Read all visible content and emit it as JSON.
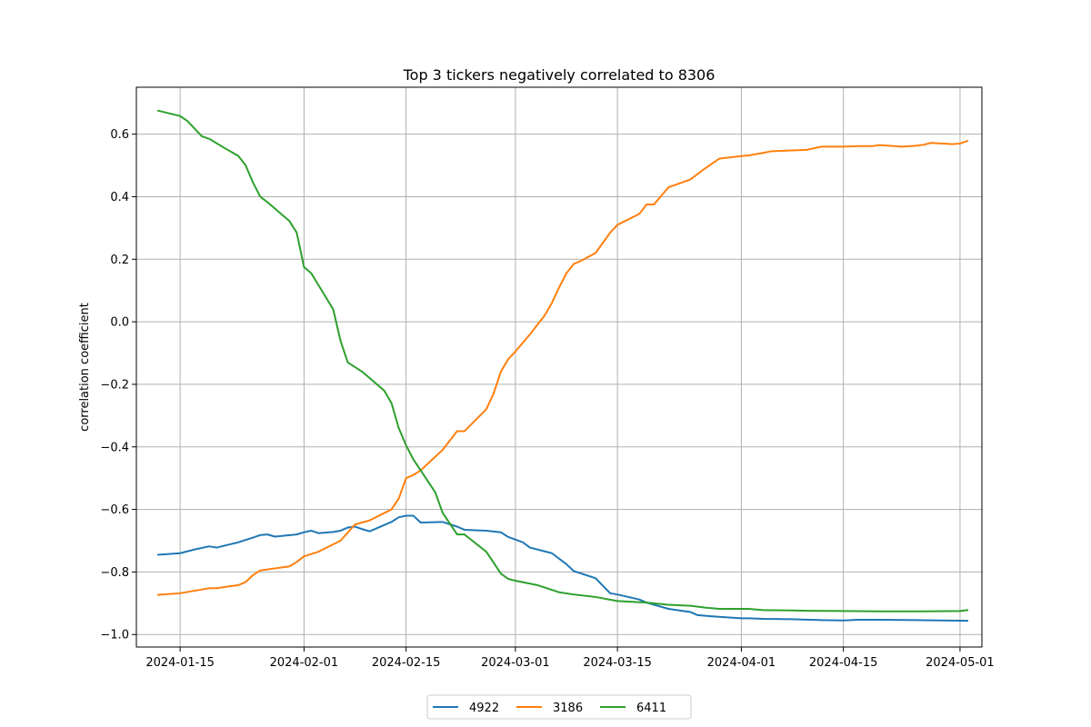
{
  "chart_data": {
    "type": "line",
    "title": "Top 3 tickers negatively correlated to 8306",
    "xlabel": "",
    "ylabel": "correlation coefficient",
    "x_tick_labels": [
      "2024-01-15",
      "2024-02-01",
      "2024-02-15",
      "2024-03-01",
      "2024-03-15",
      "2024-04-01",
      "2024-04-15",
      "2024-05-01"
    ],
    "y_ticks": [
      -1.0,
      -0.8,
      -0.6,
      -0.4,
      -0.2,
      0.0,
      0.2,
      0.4,
      0.6
    ],
    "y_tick_labels": [
      "−1.0",
      "−0.8",
      "−0.6",
      "−0.4",
      "−0.2",
      "0.0",
      "0.2",
      "0.4",
      "0.6"
    ],
    "xlim": [
      "2024-01-09",
      "2024-05-04"
    ],
    "ylim": [
      -1.04,
      0.75
    ],
    "grid": true,
    "legend_placement": "bottom-center",
    "series": [
      {
        "name": "4922",
        "color": "#1f77b4",
        "points": [
          [
            "2024-01-12",
            -0.745
          ],
          [
            "2024-01-15",
            -0.74
          ],
          [
            "2024-01-17",
            -0.728
          ],
          [
            "2024-01-19",
            -0.718
          ],
          [
            "2024-01-20",
            -0.722
          ],
          [
            "2024-01-23",
            -0.705
          ],
          [
            "2024-01-25",
            -0.69
          ],
          [
            "2024-01-26",
            -0.682
          ],
          [
            "2024-01-27",
            -0.68
          ],
          [
            "2024-01-28",
            -0.687
          ],
          [
            "2024-01-31",
            -0.68
          ],
          [
            "2024-02-01",
            -0.673
          ],
          [
            "2024-02-02",
            -0.668
          ],
          [
            "2024-02-03",
            -0.676
          ],
          [
            "2024-02-05",
            -0.672
          ],
          [
            "2024-02-06",
            -0.668
          ],
          [
            "2024-02-07",
            -0.658
          ],
          [
            "2024-02-08",
            -0.655
          ],
          [
            "2024-02-09",
            -0.663
          ],
          [
            "2024-02-10",
            -0.67
          ],
          [
            "2024-02-13",
            -0.64
          ],
          [
            "2024-02-14",
            -0.625
          ],
          [
            "2024-02-15",
            -0.62
          ],
          [
            "2024-02-16",
            -0.62
          ],
          [
            "2024-02-17",
            -0.642
          ],
          [
            "2024-02-20",
            -0.64
          ],
          [
            "2024-02-22",
            -0.655
          ],
          [
            "2024-02-23",
            -0.665
          ],
          [
            "2024-02-26",
            -0.668
          ],
          [
            "2024-02-28",
            -0.673
          ],
          [
            "2024-02-29",
            -0.688
          ],
          [
            "2024-03-02",
            -0.705
          ],
          [
            "2024-03-03",
            -0.722
          ],
          [
            "2024-03-06",
            -0.74
          ],
          [
            "2024-03-08",
            -0.775
          ],
          [
            "2024-03-09",
            -0.797
          ],
          [
            "2024-03-12",
            -0.82
          ],
          [
            "2024-03-14",
            -0.868
          ],
          [
            "2024-03-15",
            -0.872
          ],
          [
            "2024-03-18",
            -0.888
          ],
          [
            "2024-03-19",
            -0.898
          ],
          [
            "2024-03-22",
            -0.918
          ],
          [
            "2024-03-25",
            -0.928
          ],
          [
            "2024-03-26",
            -0.938
          ],
          [
            "2024-03-28",
            -0.942
          ],
          [
            "2024-04-01",
            -0.948
          ],
          [
            "2024-04-02",
            -0.948
          ],
          [
            "2024-04-04",
            -0.95
          ],
          [
            "2024-04-08",
            -0.951
          ],
          [
            "2024-04-12",
            -0.954
          ],
          [
            "2024-04-15",
            -0.955
          ],
          [
            "2024-04-17",
            -0.953
          ],
          [
            "2024-04-20",
            -0.953
          ],
          [
            "2024-04-25",
            -0.954
          ],
          [
            "2024-05-02",
            -0.956
          ]
        ]
      },
      {
        "name": "3186",
        "color": "#ff7f0e",
        "points": [
          [
            "2024-01-12",
            -0.873
          ],
          [
            "2024-01-15",
            -0.868
          ],
          [
            "2024-01-17",
            -0.86
          ],
          [
            "2024-01-19",
            -0.852
          ],
          [
            "2024-01-20",
            -0.852
          ],
          [
            "2024-01-23",
            -0.842
          ],
          [
            "2024-01-24",
            -0.832
          ],
          [
            "2024-01-25",
            -0.81
          ],
          [
            "2024-01-26",
            -0.795
          ],
          [
            "2024-01-30",
            -0.782
          ],
          [
            "2024-01-31",
            -0.768
          ],
          [
            "2024-02-01",
            -0.75
          ],
          [
            "2024-02-03",
            -0.735
          ],
          [
            "2024-02-06",
            -0.7
          ],
          [
            "2024-02-08",
            -0.648
          ],
          [
            "2024-02-10",
            -0.635
          ],
          [
            "2024-02-13",
            -0.6
          ],
          [
            "2024-02-14",
            -0.565
          ],
          [
            "2024-02-15",
            -0.5
          ],
          [
            "2024-02-16",
            -0.49
          ],
          [
            "2024-02-17",
            -0.475
          ],
          [
            "2024-02-20",
            -0.41
          ],
          [
            "2024-02-22",
            -0.35
          ],
          [
            "2024-02-23",
            -0.35
          ],
          [
            "2024-02-26",
            -0.28
          ],
          [
            "2024-02-27",
            -0.23
          ],
          [
            "2024-02-28",
            -0.16
          ],
          [
            "2024-02-29",
            -0.12
          ],
          [
            "2024-03-01",
            -0.095
          ],
          [
            "2024-03-03",
            -0.04
          ],
          [
            "2024-03-05",
            0.02
          ],
          [
            "2024-03-06",
            0.06
          ],
          [
            "2024-03-07",
            0.11
          ],
          [
            "2024-03-08",
            0.155
          ],
          [
            "2024-03-09",
            0.185
          ],
          [
            "2024-03-10",
            0.195
          ],
          [
            "2024-03-12",
            0.22
          ],
          [
            "2024-03-14",
            0.285
          ],
          [
            "2024-03-15",
            0.31
          ],
          [
            "2024-03-18",
            0.345
          ],
          [
            "2024-03-19",
            0.375
          ],
          [
            "2024-03-20",
            0.375
          ],
          [
            "2024-03-22",
            0.43
          ],
          [
            "2024-03-25",
            0.455
          ],
          [
            "2024-03-27",
            0.49
          ],
          [
            "2024-03-29",
            0.522
          ],
          [
            "2024-04-01",
            0.53
          ],
          [
            "2024-04-02",
            0.532
          ],
          [
            "2024-04-04",
            0.54
          ],
          [
            "2024-04-05",
            0.545
          ],
          [
            "2024-04-08",
            0.548
          ],
          [
            "2024-04-10",
            0.55
          ],
          [
            "2024-04-12",
            0.56
          ],
          [
            "2024-04-15",
            0.56
          ],
          [
            "2024-04-17",
            0.562
          ],
          [
            "2024-04-19",
            0.562
          ],
          [
            "2024-04-20",
            0.565
          ],
          [
            "2024-04-23",
            0.56
          ],
          [
            "2024-04-25",
            0.563
          ],
          [
            "2024-04-26",
            0.566
          ],
          [
            "2024-04-27",
            0.572
          ],
          [
            "2024-04-30",
            0.568
          ],
          [
            "2024-05-01",
            0.57
          ],
          [
            "2024-05-02",
            0.578
          ]
        ]
      },
      {
        "name": "6411",
        "color": "#2ca02c",
        "points": [
          [
            "2024-01-12",
            0.675
          ],
          [
            "2024-01-15",
            0.658
          ],
          [
            "2024-01-16",
            0.642
          ],
          [
            "2024-01-18",
            0.593
          ],
          [
            "2024-01-19",
            0.585
          ],
          [
            "2024-01-21",
            0.557
          ],
          [
            "2024-01-23",
            0.53
          ],
          [
            "2024-01-24",
            0.5
          ],
          [
            "2024-01-25",
            0.445
          ],
          [
            "2024-01-26",
            0.4
          ],
          [
            "2024-01-27",
            0.382
          ],
          [
            "2024-01-30",
            0.322
          ],
          [
            "2024-01-31",
            0.285
          ],
          [
            "2024-02-01",
            0.175
          ],
          [
            "2024-02-02",
            0.155
          ],
          [
            "2024-02-05",
            0.04
          ],
          [
            "2024-02-06",
            -0.06
          ],
          [
            "2024-02-07",
            -0.13
          ],
          [
            "2024-02-09",
            -0.16
          ],
          [
            "2024-02-12",
            -0.22
          ],
          [
            "2024-02-13",
            -0.26
          ],
          [
            "2024-02-14",
            -0.34
          ],
          [
            "2024-02-15",
            -0.395
          ],
          [
            "2024-02-16",
            -0.44
          ],
          [
            "2024-02-19",
            -0.545
          ],
          [
            "2024-02-20",
            -0.61
          ],
          [
            "2024-02-22",
            -0.68
          ],
          [
            "2024-02-23",
            -0.68
          ],
          [
            "2024-02-26",
            -0.735
          ],
          [
            "2024-02-27",
            -0.77
          ],
          [
            "2024-02-28",
            -0.805
          ],
          [
            "2024-02-29",
            -0.822
          ],
          [
            "2024-03-01",
            -0.828
          ],
          [
            "2024-03-04",
            -0.842
          ],
          [
            "2024-03-06",
            -0.857
          ],
          [
            "2024-03-07",
            -0.865
          ],
          [
            "2024-03-09",
            -0.872
          ],
          [
            "2024-03-12",
            -0.88
          ],
          [
            "2024-03-15",
            -0.893
          ],
          [
            "2024-03-19",
            -0.898
          ],
          [
            "2024-03-22",
            -0.905
          ],
          [
            "2024-03-25",
            -0.908
          ],
          [
            "2024-03-27",
            -0.914
          ],
          [
            "2024-03-29",
            -0.918
          ],
          [
            "2024-04-02",
            -0.918
          ],
          [
            "2024-04-04",
            -0.922
          ],
          [
            "2024-04-08",
            -0.923
          ],
          [
            "2024-04-10",
            -0.924
          ],
          [
            "2024-04-15",
            -0.925
          ],
          [
            "2024-04-20",
            -0.926
          ],
          [
            "2024-04-25",
            -0.926
          ],
          [
            "2024-05-01",
            -0.925
          ],
          [
            "2024-05-02",
            -0.922
          ]
        ]
      }
    ]
  }
}
